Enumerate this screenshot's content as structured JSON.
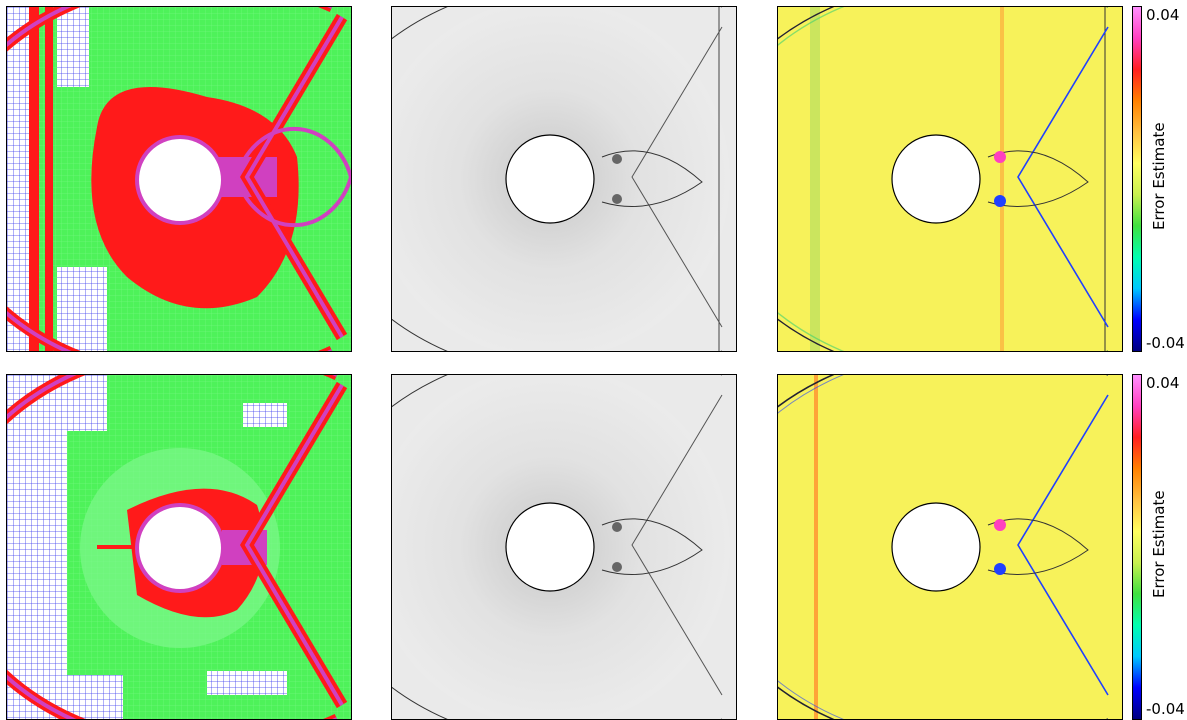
{
  "colorbar": {
    "title": "Error Estimate",
    "max_label": "0.04",
    "min_label": "-0.04",
    "stops": [
      "#000080",
      "#0000ff",
      "#00c8ff",
      "#00ffb0",
      "#40e040",
      "#c8f050",
      "#ffff60",
      "#ffc040",
      "#ff8000",
      "#ff2020",
      "#ff40c0",
      "#ff90ff"
    ]
  },
  "rows": [
    {
      "row": "top"
    },
    {
      "row": "bottom"
    }
  ],
  "colors": {
    "mesh_green": "#4ef25a",
    "mesh_red": "#ff1a1a",
    "mesh_magenta": "#d040c0",
    "mesh_white_grid": "#3a3aee",
    "density_bg": "#e8e8e8",
    "error_bg": "#f7f25a"
  }
}
